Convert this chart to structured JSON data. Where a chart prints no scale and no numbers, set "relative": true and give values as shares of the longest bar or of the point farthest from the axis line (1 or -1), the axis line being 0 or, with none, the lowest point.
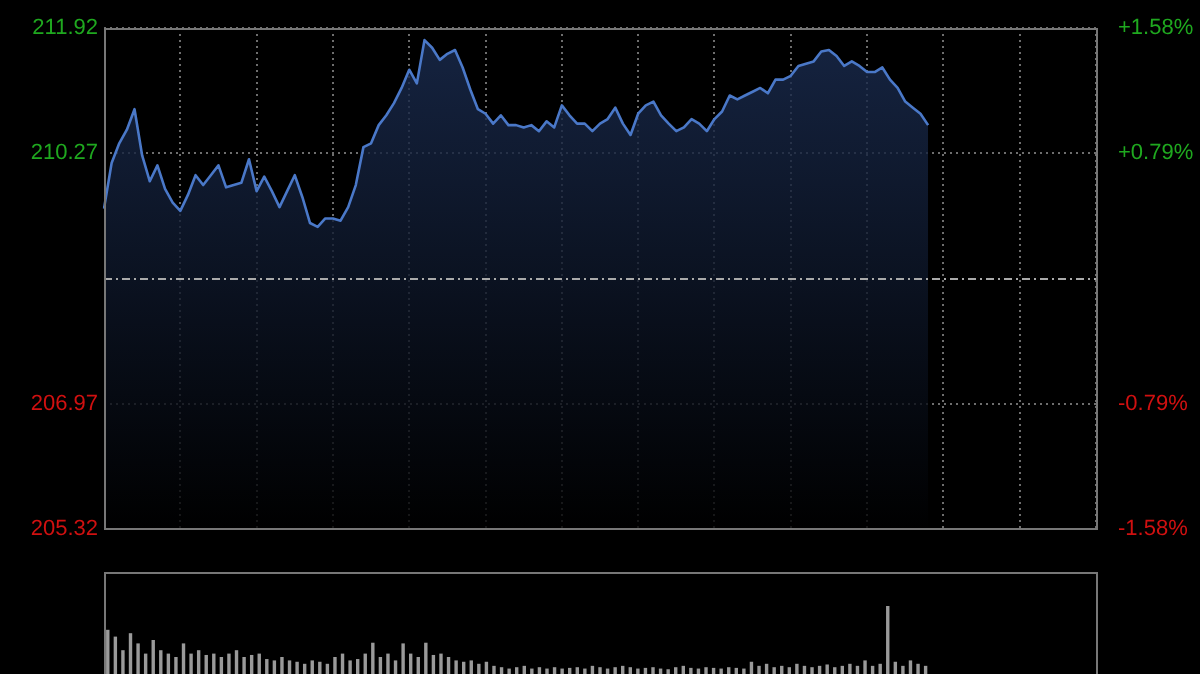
{
  "chart_data": [
    {
      "type": "area",
      "categories": [
        null,
        null,
        null,
        null,
        null,
        null,
        null,
        null,
        null,
        null,
        null,
        null,
        null,
        null,
        null,
        null,
        null,
        null,
        null,
        null,
        null,
        null,
        null,
        null,
        null,
        null,
        null,
        null,
        null,
        null,
        null,
        null,
        null,
        null,
        null,
        null,
        null,
        null,
        null,
        null,
        null,
        null,
        null,
        null,
        null,
        null,
        null,
        null,
        null,
        null,
        null,
        null,
        null,
        null,
        null,
        null,
        null,
        null,
        null,
        null,
        null,
        null,
        null,
        null,
        null,
        null,
        null,
        null,
        null,
        null,
        null,
        null,
        null,
        null,
        null,
        null,
        null,
        null,
        null,
        null,
        null,
        null,
        null,
        null,
        null,
        null,
        null,
        null,
        null,
        null,
        null,
        null,
        null,
        null,
        null,
        null,
        null,
        null,
        null,
        null,
        null,
        null,
        null,
        null,
        null,
        null,
        null,
        null,
        null,
        null,
        null,
        null,
        null,
        null,
        null,
        null,
        null,
        null,
        null,
        null,
        null,
        null,
        null,
        null,
        null,
        null,
        null,
        null,
        null,
        null,
        null
      ],
      "series": [
        {
          "color": "#4a78c8",
          "values": [
            209.54,
            210.14,
            210.4,
            210.58,
            210.85,
            210.24,
            209.9,
            210.11,
            209.8,
            209.62,
            209.51,
            209.72,
            209.98,
            209.85,
            209.98,
            210.11,
            209.82,
            209.85,
            209.88,
            210.19,
            209.77,
            209.96,
            209.77,
            209.56,
            209.77,
            209.98,
            209.69,
            209.35,
            209.3,
            209.41,
            209.41,
            209.38,
            209.56,
            209.85,
            210.35,
            210.4,
            210.64,
            210.77,
            210.93,
            211.13,
            211.37,
            211.19,
            211.76,
            211.66,
            211.5,
            211.58,
            211.63,
            211.4,
            211.11,
            210.85,
            210.79,
            210.66,
            210.77,
            210.64,
            210.64,
            210.61,
            210.64,
            210.56,
            210.69,
            210.61,
            210.9,
            210.77,
            210.66,
            210.66,
            210.56,
            210.66,
            210.72,
            210.87,
            210.66,
            210.51,
            210.79,
            210.9,
            210.95,
            210.77,
            210.66,
            210.56,
            210.61,
            210.72,
            210.66,
            210.56,
            210.72,
            210.82,
            211.03,
            210.98,
            211.03,
            211.08,
            211.13,
            211.06,
            211.24,
            211.24,
            211.29,
            211.42,
            211.45,
            211.48,
            211.61,
            211.63,
            211.55,
            211.42,
            211.48,
            211.42,
            211.34,
            211.34,
            211.4,
            211.24,
            211.13,
            210.95,
            210.87,
            210.79,
            210.64,
            null,
            null,
            null,
            null,
            null,
            null,
            null,
            null,
            null,
            null,
            null,
            null,
            null,
            null,
            null,
            null,
            null,
            null,
            null,
            null,
            null,
            null
          ]
        }
      ],
      "ylim": [
        205.32,
        211.92
      ],
      "yticks": [
        205.32,
        206.97,
        210.27,
        211.92
      ],
      "y2lim": [
        -1.58,
        1.58
      ],
      "y2ticks": [
        {
          "value": -1.58,
          "label": "-1.58%"
        },
        {
          "value": -0.79,
          "label": "-0.79%"
        },
        {
          "value": 0.79,
          "label": "+0.79%"
        },
        {
          "value": 1.58,
          "label": "+1.58%"
        }
      ],
      "ref_lines": [
        {
          "axis": "y",
          "value": 208.62,
          "line_style": "dashed"
        }
      ],
      "grid": true,
      "legend": false
    },
    {
      "type": "bar",
      "relative": true,
      "categories": [
        null,
        null,
        null,
        null,
        null,
        null,
        null,
        null,
        null,
        null,
        null,
        null,
        null,
        null,
        null,
        null,
        null,
        null,
        null,
        null,
        null,
        null,
        null,
        null,
        null,
        null,
        null,
        null,
        null,
        null,
        null,
        null,
        null,
        null,
        null,
        null,
        null,
        null,
        null,
        null,
        null,
        null,
        null,
        null,
        null,
        null,
        null,
        null,
        null,
        null,
        null,
        null,
        null,
        null,
        null,
        null,
        null,
        null,
        null,
        null,
        null,
        null,
        null,
        null,
        null,
        null,
        null,
        null,
        null,
        null,
        null,
        null,
        null,
        null,
        null,
        null,
        null,
        null,
        null,
        null,
        null,
        null,
        null,
        null,
        null,
        null,
        null,
        null,
        null,
        null,
        null,
        null,
        null,
        null,
        null,
        null,
        null,
        null,
        null,
        null,
        null,
        null,
        null,
        null,
        null,
        null,
        null,
        null,
        null,
        null,
        null,
        null,
        null,
        null,
        null,
        null,
        null,
        null,
        null,
        null,
        null,
        null,
        null,
        null,
        null,
        null,
        null,
        null,
        null,
        null,
        null
      ],
      "series": [
        {
          "color": "#9a9a9a",
          "values": [
            0.65,
            0.55,
            0.35,
            0.6,
            0.45,
            0.3,
            0.5,
            0.35,
            0.3,
            0.25,
            0.45,
            0.3,
            0.35,
            0.28,
            0.3,
            0.25,
            0.3,
            0.35,
            0.25,
            0.28,
            0.3,
            0.22,
            0.2,
            0.25,
            0.2,
            0.18,
            0.15,
            0.2,
            0.18,
            0.15,
            0.25,
            0.3,
            0.2,
            0.22,
            0.3,
            0.46,
            0.25,
            0.3,
            0.2,
            0.45,
            0.3,
            0.25,
            0.46,
            0.28,
            0.3,
            0.25,
            0.2,
            0.18,
            0.2,
            0.15,
            0.18,
            0.12,
            0.1,
            0.08,
            0.1,
            0.12,
            0.08,
            0.1,
            0.08,
            0.1,
            0.08,
            0.09,
            0.1,
            0.08,
            0.12,
            0.1,
            0.08,
            0.1,
            0.12,
            0.1,
            0.08,
            0.09,
            0.1,
            0.08,
            0.07,
            0.1,
            0.12,
            0.09,
            0.08,
            0.1,
            0.09,
            0.08,
            0.1,
            0.09,
            0.08,
            0.18,
            0.12,
            0.15,
            0.1,
            0.12,
            0.1,
            0.15,
            0.12,
            0.1,
            0.12,
            0.14,
            0.1,
            0.12,
            0.15,
            0.12,
            0.2,
            0.12,
            0.15,
            1,
            0.18,
            0.12,
            0.2,
            0.15,
            0.12,
            null,
            null,
            null,
            null,
            null,
            null,
            null,
            null,
            null,
            null,
            null,
            null,
            null,
            null,
            null,
            null,
            null,
            null,
            null,
            null,
            null,
            null
          ]
        }
      ],
      "legend": false
    }
  ]
}
